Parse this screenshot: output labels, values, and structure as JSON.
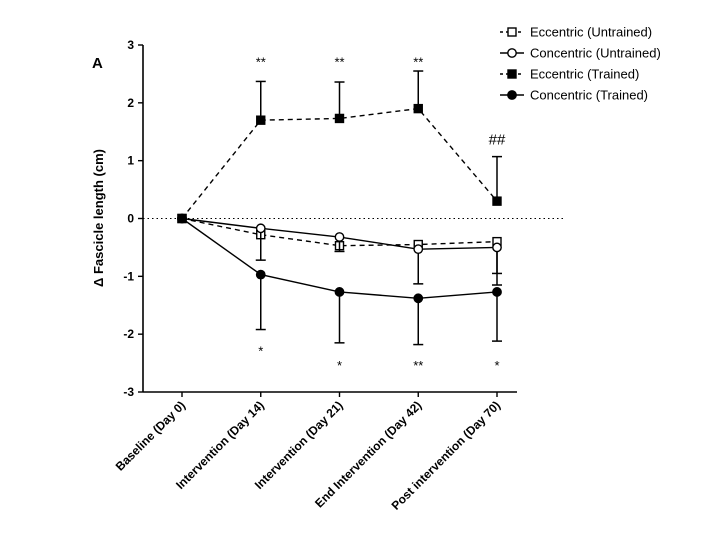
{
  "chart_data": {
    "type": "line",
    "panel_label": "A",
    "ylabel": "Δ Fascicle length (cm)",
    "xlabel": "",
    "ylim": [
      -3,
      3
    ],
    "yticks": [
      "3",
      "2",
      "1",
      "0",
      "-1",
      "-2",
      "-3"
    ],
    "categories": [
      "Baseline (Day 0)",
      "Intervention (Day 14)",
      "Intervention (Day 21)",
      "End Intervention (Day 42)",
      "Post intervention (Day 70)"
    ],
    "reference_line_y": 0,
    "legend_position": "top-right",
    "series": [
      {
        "name": "Eccentric (Untrained)",
        "marker": "square-open",
        "line": "dashed",
        "values": [
          0,
          -0.28,
          -0.47,
          -0.45,
          -0.4
        ],
        "error": [
          0,
          0,
          0,
          0,
          0.55
        ]
      },
      {
        "name": "Concentric (Untrained)",
        "marker": "circle-open",
        "line": "solid",
        "values": [
          0,
          -0.17,
          -0.32,
          -0.53,
          -0.5
        ],
        "error": [
          0,
          0.55,
          0.25,
          0.6,
          0.65
        ]
      },
      {
        "name": "Eccentric (Trained)",
        "marker": "square-filled",
        "line": "dashed",
        "values": [
          0,
          1.7,
          1.73,
          1.9,
          0.3
        ],
        "error": [
          0,
          0.67,
          0.63,
          0.65,
          0.77
        ]
      },
      {
        "name": "Concentric (Trained)",
        "marker": "circle-filled",
        "line": "solid",
        "values": [
          0,
          -0.97,
          -1.27,
          -1.38,
          -1.27
        ],
        "error": [
          0,
          0.95,
          0.88,
          0.8,
          0.85
        ]
      }
    ],
    "annotations": [
      {
        "text": "**",
        "category_index": 1,
        "y": 2.7
      },
      {
        "text": "**",
        "category_index": 2,
        "y": 2.7
      },
      {
        "text": "**",
        "category_index": 3,
        "y": 2.7
      },
      {
        "text": "##",
        "category_index": 4,
        "y": 1.35
      },
      {
        "text": "*",
        "category_index": 1,
        "y": -2.3
      },
      {
        "text": "*",
        "category_index": 2,
        "y": -2.55
      },
      {
        "text": "**",
        "category_index": 3,
        "y": -2.55
      },
      {
        "text": "*",
        "category_index": 4,
        "y": -2.55
      }
    ]
  }
}
